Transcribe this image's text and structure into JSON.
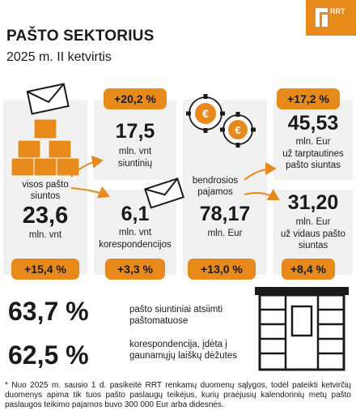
{
  "header": {
    "title": "PAŠTO SEKTORIUS",
    "subtitle": "2025 m. II ketvirtis",
    "logo_text": "RRT"
  },
  "chart_data": {
    "type": "table",
    "left_block": {
      "label": "visos pašto siuntos",
      "value": "23,6",
      "unit": "mln. vnt",
      "change": "+15,4 %"
    },
    "parcels": {
      "value": "17,5",
      "unit": "mln. vnt",
      "label": "siuntinių",
      "change": "+20,2 %"
    },
    "correspondence": {
      "value": "6,1",
      "unit": "mln. vnt",
      "label": "korespondencijos",
      "change": "+3,3 %"
    },
    "revenue_block": {
      "label": "bendrosios pajamos",
      "value": "78,17",
      "unit": "mln. Eur",
      "change": "+13,0 %"
    },
    "intl": {
      "value": "45,53",
      "unit": "mln. Eur",
      "label": "už tarptautines pašto siuntas",
      "change": "+17,2 %"
    },
    "domestic": {
      "value": "31,20",
      "unit": "mln. Eur",
      "label": "už vidaus pašto siuntas",
      "change": "+8,4 %"
    },
    "shares": [
      {
        "value": "63,7 %",
        "label": "pašto siuntiniai atsiimti paštomatuose"
      },
      {
        "value": "62,5 %",
        "label": "korespondencija, įdėta į gaunamųjų laiškų dėžutes"
      }
    ]
  },
  "footnote": "* Nuo 2025 m. sausio 1 d. pasikeitė RRT renkamų duomenų sąlygos, todėl pateikti ketvirčių duomenys apima tik tuos pašto paslaugų teikėjus, kurių praėjusių kalendorinių metų pašto paslaugos teikimo pajamos buvo 300 000 Eur arba didesnės.",
  "colors": {
    "accent": "#e8891c",
    "card": "#f1f1f1",
    "text": "#1a1a1a"
  }
}
